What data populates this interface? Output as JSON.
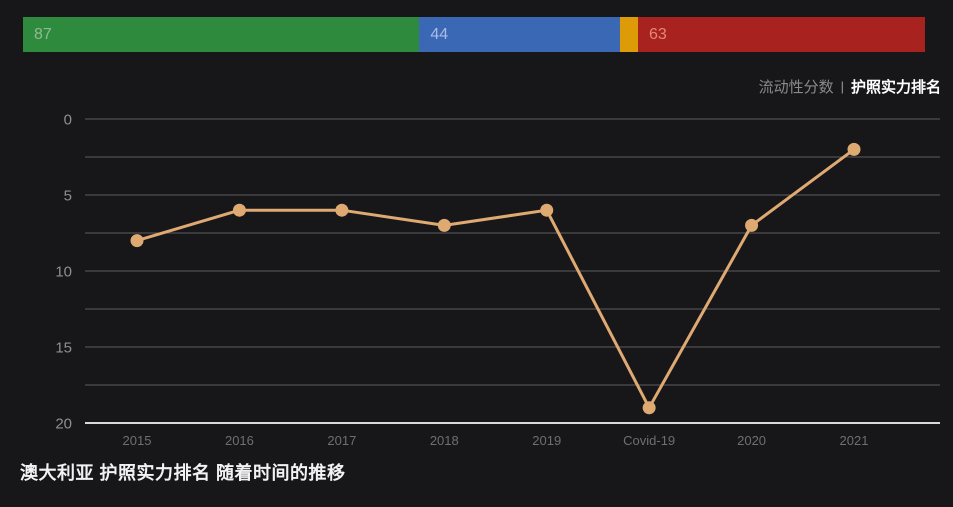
{
  "colors": {
    "background": "#17171a",
    "grid_minor": "#5e5e60",
    "axis_line": "#d9d9d9",
    "y_tick_label": "#8f8f8f",
    "x_tick_label": "#6f6f6f",
    "line": "#dfa972",
    "title_text": "#f2f2f2",
    "legend_inactive": "#8a8a8a",
    "legend_active": "#fefefe"
  },
  "top_bar": {
    "segments": [
      {
        "name": "visa-free-segment",
        "value": 87,
        "label": "87",
        "color": "#2e8b3e",
        "label_color": "#93b993"
      },
      {
        "name": "visa-on-arrival-segment",
        "value": 44,
        "label": "44",
        "color": "#3a68b5",
        "label_color": "#aabde2"
      },
      {
        "name": "eta-segment",
        "value": 4,
        "label": "",
        "color": "#dd9b07",
        "label_color": "#f0d9a0"
      },
      {
        "name": "visa-required-segment",
        "value": 63,
        "label": "63",
        "color": "#a8231f",
        "label_color": "#e5857d"
      }
    ]
  },
  "legend": {
    "separator": "|",
    "items": [
      {
        "label": "流动性分数",
        "active": false
      },
      {
        "label": "护照实力排名",
        "active": true
      }
    ]
  },
  "chart_data": {
    "type": "line",
    "title": "澳大利亚 护照实力排名 随着时间的推移",
    "categories": [
      "2015",
      "2016",
      "2017",
      "2018",
      "2019",
      "Covid-19",
      "2020",
      "2021"
    ],
    "series": [
      {
        "name": "护照实力排名",
        "values": [
          8,
          6,
          6,
          7,
          6,
          19,
          7,
          2
        ]
      }
    ],
    "ylim": [
      0,
      20
    ],
    "y_ticks": [
      0,
      5,
      10,
      15,
      20
    ],
    "y_minor_step": 2.5,
    "y_inverted": true,
    "grid": true,
    "legend_position": "top-right",
    "xlabel": "",
    "ylabel": ""
  }
}
